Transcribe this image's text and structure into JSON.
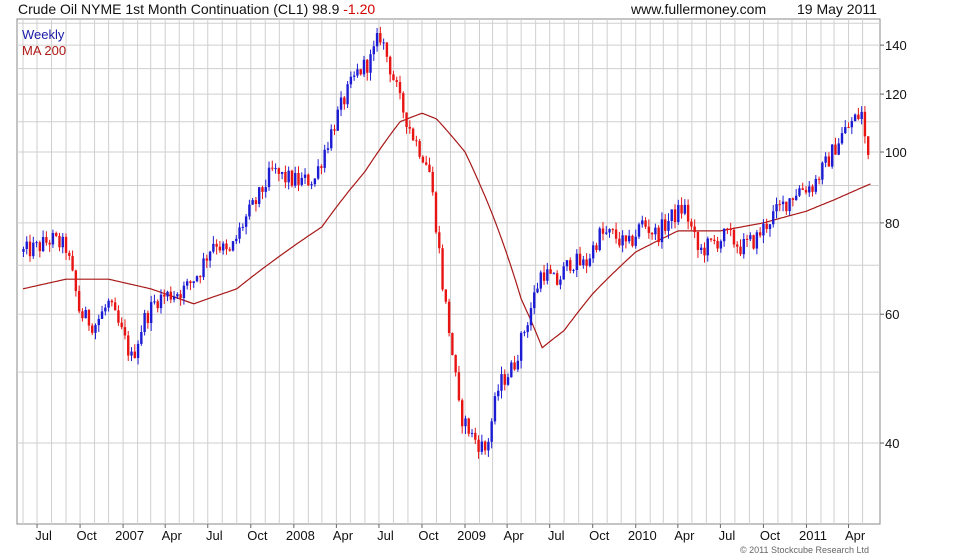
{
  "header": {
    "title": "Crude Oil NYME 1st Month Continuation (CL1) 98.9",
    "change": "-1.20",
    "site": "www.fullermoney.com",
    "date": "19 May 2011"
  },
  "legend": {
    "weekly": "Weekly",
    "ma": "MA 200"
  },
  "copyright": "© 2011 Stockcube Research Ltd",
  "colors": {
    "up": "#1c1cd4",
    "down": "#e81414",
    "ma": "#a81818",
    "grid": "#cfcfcf"
  },
  "chart_data": {
    "type": "line",
    "price_scale": "log",
    "ylim": [
      31,
      152
    ],
    "y_ticks": [
      40,
      60,
      80,
      100,
      120,
      140
    ],
    "x_ticks": [
      "Jul",
      "Oct",
      "2007",
      "Apr",
      "Jul",
      "Oct",
      "2008",
      "Apr",
      "Jul",
      "Oct",
      "2009",
      "Apr",
      "Jul",
      "Oct",
      "2010",
      "Apr",
      "Jul",
      "Oct",
      "2011",
      "Apr"
    ],
    "grid": true,
    "legend_position": "top-left",
    "series": [
      {
        "name": "Weekly",
        "x": [
          "2006-06-02",
          "2006-07-01",
          "2006-08-01",
          "2006-09-01",
          "2006-10-01",
          "2006-11-01",
          "2006-12-01",
          "2007-01-01",
          "2007-01-20",
          "2007-02-15",
          "2007-03-15",
          "2007-04-15",
          "2007-05-15",
          "2007-06-15",
          "2007-07-15",
          "2007-08-15",
          "2007-09-15",
          "2007-10-15",
          "2007-11-15",
          "2007-12-15",
          "2008-01-15",
          "2008-02-15",
          "2008-03-15",
          "2008-04-15",
          "2008-05-15",
          "2008-06-15",
          "2008-07-03",
          "2008-08-15",
          "2008-09-15",
          "2008-10-15",
          "2008-11-15",
          "2008-12-20",
          "2009-01-15",
          "2009-02-15",
          "2009-03-15",
          "2009-04-15",
          "2009-05-15",
          "2009-06-15",
          "2009-07-15",
          "2009-08-15",
          "2009-09-15",
          "2009-10-15",
          "2009-11-15",
          "2009-12-15",
          "2010-01-15",
          "2010-02-15",
          "2010-03-15",
          "2010-04-15",
          "2010-05-15",
          "2010-06-15",
          "2010-07-15",
          "2010-08-15",
          "2010-09-15",
          "2010-10-15",
          "2010-11-15",
          "2010-12-15",
          "2011-01-15",
          "2011-02-15",
          "2011-03-15",
          "2011-04-15",
          "2011-04-29",
          "2011-05-10",
          "2011-05-19"
        ],
        "values": [
          73,
          74,
          76,
          74,
          60,
          58,
          62,
          56,
          52,
          59,
          63,
          64,
          65,
          69,
          76,
          72,
          80,
          86,
          94,
          92,
          91,
          92,
          104,
          117,
          128,
          134,
          145,
          117,
          104,
          96,
          65,
          44,
          41,
          39,
          48,
          51,
          59,
          69,
          66,
          71,
          70,
          77,
          77,
          74,
          80,
          77,
          81,
          84,
          73,
          75,
          77,
          74,
          76,
          81,
          85,
          89,
          90,
          97,
          105,
          111,
          113,
          99,
          98.9
        ]
      },
      {
        "name": "MA 200",
        "x": [
          "2006-06-01",
          "2006-09-01",
          "2006-12-01",
          "2007-03-01",
          "2007-06-01",
          "2007-09-01",
          "2007-12-01",
          "2008-03-01",
          "2008-06-01",
          "2008-08-15",
          "2008-10-01",
          "2008-11-01",
          "2009-01-01",
          "2009-03-01",
          "2009-05-01",
          "2009-06-15",
          "2009-08-01",
          "2009-10-01",
          "2010-01-01",
          "2010-04-01",
          "2010-07-01",
          "2010-10-01",
          "2011-01-01",
          "2011-03-01",
          "2011-05-19"
        ],
        "values": [
          65,
          67,
          67,
          65,
          62,
          65,
          72,
          79,
          94,
          110,
          113,
          111,
          100,
          82,
          63,
          54,
          57,
          64,
          73,
          78,
          78,
          80,
          83,
          86,
          90.5
        ]
      }
    ]
  }
}
